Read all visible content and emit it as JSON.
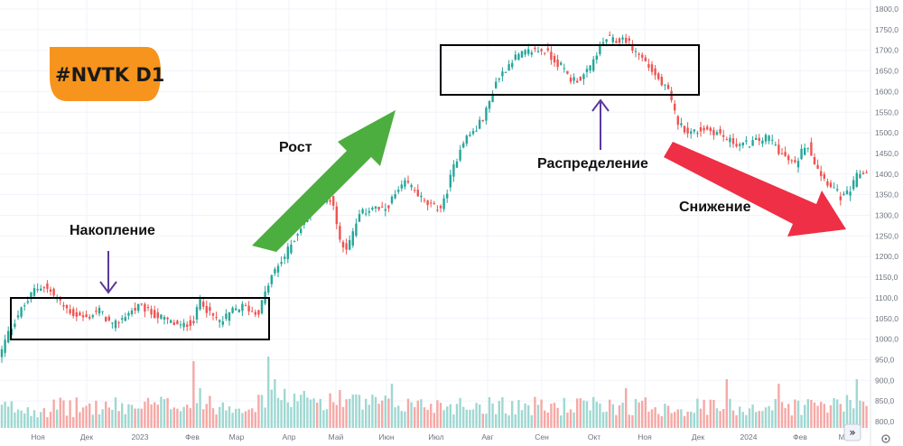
{
  "chart_data": {
    "type": "candlestick",
    "title": "#NVTK D1",
    "ylim": [
      760,
      1820
    ],
    "y_ticks": [
      "1800,0",
      "1750,0",
      "1700,0",
      "1650,0",
      "1600,0",
      "1550,0",
      "1500,0",
      "1450,0",
      "1400,0",
      "1350,0",
      "1300,0",
      "1250,0",
      "1200,0",
      "1150,0",
      "1100,0",
      "1050,0",
      "1000,0",
      "950,0",
      "900,0",
      "850,0",
      "800,0"
    ],
    "x_ticks": [
      "Ноя",
      "Дек",
      "2023",
      "Фев",
      "Мар",
      "Апр",
      "Май",
      "Июн",
      "Июл",
      "Авг",
      "Сен",
      "Окт",
      "Ноя",
      "Дек",
      "2024",
      "Фев",
      "Мар"
    ],
    "grid": true,
    "price_path": [
      [
        0,
        960
      ],
      [
        8,
        1010
      ],
      [
        20,
        1060
      ],
      [
        30,
        1090
      ],
      [
        38,
        1120
      ],
      [
        48,
        1130
      ],
      [
        58,
        1110
      ],
      [
        70,
        1080
      ],
      [
        82,
        1060
      ],
      [
        95,
        1050
      ],
      [
        110,
        1070
      ],
      [
        125,
        1030
      ],
      [
        140,
        1060
      ],
      [
        155,
        1080
      ],
      [
        170,
        1060
      ],
      [
        185,
        1045
      ],
      [
        200,
        1030
      ],
      [
        215,
        1045
      ],
      [
        222,
        1100
      ],
      [
        232,
        1060
      ],
      [
        245,
        1040
      ],
      [
        258,
        1070
      ],
      [
        270,
        1080
      ],
      [
        285,
        1060
      ],
      [
        292,
        1100
      ],
      [
        300,
        1150
      ],
      [
        315,
        1200
      ],
      [
        330,
        1260
      ],
      [
        345,
        1320
      ],
      [
        355,
        1340
      ],
      [
        368,
        1340
      ],
      [
        376,
        1240
      ],
      [
        385,
        1220
      ],
      [
        398,
        1300
      ],
      [
        412,
        1320
      ],
      [
        425,
        1310
      ],
      [
        438,
        1350
      ],
      [
        450,
        1380
      ],
      [
        460,
        1360
      ],
      [
        470,
        1330
      ],
      [
        480,
        1320
      ],
      [
        490,
        1320
      ],
      [
        500,
        1400
      ],
      [
        512,
        1480
      ],
      [
        528,
        1510
      ],
      [
        540,
        1560
      ],
      [
        548,
        1620
      ],
      [
        558,
        1650
      ],
      [
        568,
        1680
      ],
      [
        578,
        1690
      ],
      [
        590,
        1700
      ],
      [
        603,
        1700
      ],
      [
        612,
        1680
      ],
      [
        622,
        1660
      ],
      [
        632,
        1630
      ],
      [
        642,
        1630
      ],
      [
        652,
        1650
      ],
      [
        662,
        1700
      ],
      [
        672,
        1730
      ],
      [
        682,
        1720
      ],
      [
        692,
        1730
      ],
      [
        702,
        1700
      ],
      [
        712,
        1680
      ],
      [
        722,
        1650
      ],
      [
        732,
        1620
      ],
      [
        740,
        1600
      ],
      [
        745,
        1560
      ],
      [
        752,
        1520
      ],
      [
        765,
        1500
      ],
      [
        780,
        1510
      ],
      [
        795,
        1500
      ],
      [
        808,
        1480
      ],
      [
        822,
        1470
      ],
      [
        838,
        1480
      ],
      [
        852,
        1490
      ],
      [
        865,
        1450
      ],
      [
        880,
        1420
      ],
      [
        893,
        1480
      ],
      [
        902,
        1430
      ],
      [
        912,
        1390
      ],
      [
        922,
        1370
      ],
      [
        932,
        1340
      ],
      [
        942,
        1360
      ],
      [
        950,
        1400
      ],
      [
        960,
        1405
      ]
    ],
    "volume_profile": [
      [
        0,
        60
      ],
      [
        150,
        70
      ],
      [
        216,
        95
      ],
      [
        222,
        75
      ],
      [
        290,
        90
      ],
      [
        296,
        130
      ],
      [
        350,
        110
      ],
      [
        430,
        85
      ],
      [
        540,
        80
      ],
      [
        600,
        70
      ],
      [
        660,
        75
      ],
      [
        720,
        75
      ],
      [
        760,
        65
      ],
      [
        860,
        70
      ],
      [
        920,
        80
      ],
      [
        960,
        85
      ]
    ],
    "volume_spikes": [
      [
        216,
        400
      ],
      [
        222,
        430
      ],
      [
        296,
        395
      ],
      [
        304,
        420
      ],
      [
        377,
        432
      ],
      [
        434,
        425
      ],
      [
        555,
        440
      ],
      [
        661,
        445
      ],
      [
        692,
        430
      ],
      [
        805,
        420
      ],
      [
        862,
        425
      ],
      [
        948,
        420
      ]
    ],
    "annotations": {
      "ticker": "#NVTK D1",
      "accumulation": "Накопление",
      "growth": "Рост",
      "distribution": "Распределение",
      "decline": "Снижение"
    },
    "colors": {
      "up": "#26a69a",
      "down": "#ef5350",
      "vol_up": "#9fd8d2",
      "vol_down": "#f5a9a6",
      "growth_arrow": "#4cae3f",
      "decline_arrow": "#ee2f45",
      "pointer": "#5b3a9a",
      "ticker_badge": "#f7941d"
    },
    "scroll_label": "»"
  }
}
